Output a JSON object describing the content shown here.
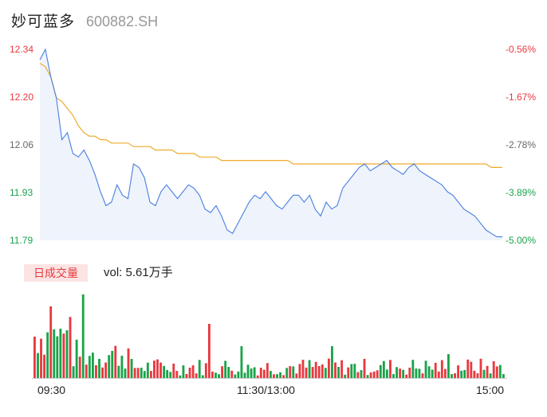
{
  "header": {
    "name": "妙可蓝多",
    "code": "600882.SH"
  },
  "price_axis": [
    {
      "value": "12.34",
      "tone": "up"
    },
    {
      "value": "12.20",
      "tone": "up"
    },
    {
      "value": "12.06",
      "tone": "flat"
    },
    {
      "value": "11.93",
      "tone": "down"
    },
    {
      "value": "11.79",
      "tone": "down"
    }
  ],
  "pct_axis": [
    {
      "value": "-0.56%",
      "tone": "up"
    },
    {
      "value": "-1.67%",
      "tone": "up"
    },
    {
      "value": "-2.78%",
      "tone": "flat"
    },
    {
      "value": "-3.89%",
      "tone": "down"
    },
    {
      "value": "-5.00%",
      "tone": "down"
    }
  ],
  "volume_tag": "日成交量",
  "volume_text": "vol: 5.61万手",
  "time_axis": [
    "09:30",
    "11:30/13:00",
    "15:00"
  ],
  "colors": {
    "up": "#e8393f",
    "down": "#1aa34a",
    "price_line": "#4a7fe0",
    "avg_line": "#f0a92a"
  },
  "chart_data": {
    "type": "line",
    "ylim": [
      11.79,
      12.34
    ],
    "series": [
      {
        "values": [
          12.31,
          12.34,
          12.26,
          12.2,
          12.08,
          12.1,
          12.04,
          12.03,
          12.05,
          12.02,
          11.98,
          11.93,
          11.89,
          11.9,
          11.95,
          11.92,
          11.91,
          12.01,
          12.0,
          11.97,
          11.9,
          11.89,
          11.93,
          11.95,
          11.93,
          11.91,
          11.93,
          11.95,
          11.94,
          11.92,
          11.88,
          11.87,
          11.89,
          11.86,
          11.82,
          11.81,
          11.84,
          11.87,
          11.9,
          11.92,
          11.91,
          11.93,
          11.91,
          11.89,
          11.88,
          11.9,
          11.92,
          11.92,
          11.9,
          11.92,
          11.88,
          11.86,
          11.9,
          11.88,
          11.89,
          11.94,
          11.96,
          11.98,
          12.0,
          12.01,
          11.99,
          12.0,
          12.01,
          12.02,
          12.0,
          11.99,
          11.98,
          12.0,
          12.01,
          11.99,
          11.98,
          11.97,
          11.96,
          11.95,
          11.93,
          11.92,
          11.9,
          11.88,
          11.87,
          11.86,
          11.84,
          11.82,
          11.81,
          11.8,
          11.8
        ]
      },
      {
        "values": [
          12.3,
          12.29,
          12.26,
          12.2,
          12.19,
          12.17,
          12.15,
          12.12,
          12.1,
          12.09,
          12.09,
          12.08,
          12.08,
          12.07,
          12.07,
          12.07,
          12.07,
          12.06,
          12.06,
          12.06,
          12.06,
          12.05,
          12.05,
          12.05,
          12.05,
          12.04,
          12.04,
          12.04,
          12.04,
          12.03,
          12.03,
          12.03,
          12.03,
          12.02,
          12.02,
          12.02,
          12.02,
          12.02,
          12.02,
          12.02,
          12.02,
          12.02,
          12.02,
          12.02,
          12.02,
          12.02,
          12.01,
          12.01,
          12.01,
          12.01,
          12.01,
          12.01,
          12.01,
          12.01,
          12.01,
          12.01,
          12.01,
          12.01,
          12.01,
          12.01,
          12.01,
          12.01,
          12.01,
          12.01,
          12.01,
          12.01,
          12.01,
          12.01,
          12.01,
          12.01,
          12.01,
          12.01,
          12.01,
          12.01,
          12.01,
          12.01,
          12.01,
          12.01,
          12.01,
          12.01,
          12.01,
          12.01,
          12.0,
          12.0,
          12.0
        ]
      }
    ]
  }
}
